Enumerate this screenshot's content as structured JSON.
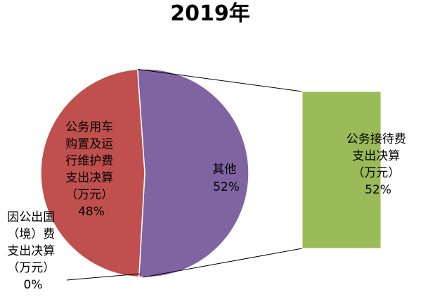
{
  "chart_data": {
    "type": "pie",
    "subtype": "pie-of-pie",
    "title": "2019年",
    "slices": [
      {
        "name": "公务用车购置及运行维护费支出决算（万元）",
        "value": 48,
        "label_lines": [
          "公务用车",
          "购置及运",
          "行维护费",
          "支出决算",
          "（万元）",
          "48%"
        ],
        "color": "#C0504D"
      },
      {
        "name": "其他",
        "value": 52,
        "label_lines": [
          "其他",
          "52%"
        ],
        "color": "#8064A2"
      },
      {
        "name": "因公出国（境）费支出决算（万元）",
        "value": 0,
        "label_lines": [
          "因公出国",
          "（境）费",
          "支出决算",
          "（万元）",
          "0%"
        ],
        "color": "#4F81BD"
      }
    ],
    "secondary_bar": {
      "name": "公务接待费支出决算（万元）",
      "value": 52,
      "label_lines": [
        "公务接待费",
        "支出决算",
        "（万元）",
        "52%"
      ],
      "color": "#9BBB59"
    },
    "legend": "none"
  }
}
